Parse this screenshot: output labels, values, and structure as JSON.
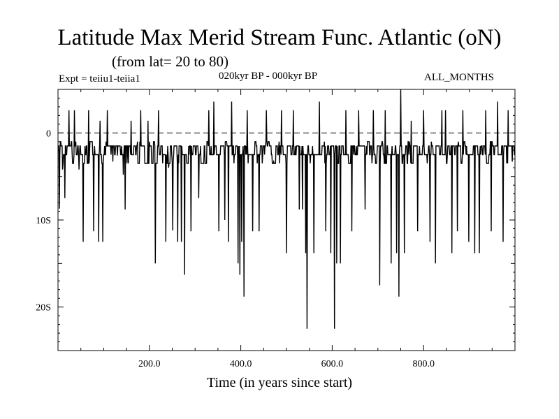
{
  "title": "Latitude Max Merid Stream Func. Atlantic (oN)",
  "subtitle": "(from lat= 20 to 80)",
  "expt_label": "Expt = teiiu1-teiia1",
  "period_label": "020kyr BP - 000kyr BP",
  "months_label": "ALL_MONTHS",
  "chart_data": {
    "type": "line",
    "title": "Latitude Max Merid Stream Func. Atlantic (oN)",
    "subtitle": "(from lat= 20 to 80)",
    "xlabel": "Time (in years since start)",
    "ylabel": "",
    "xlim": [
      0,
      1000
    ],
    "ylim": [
      -25,
      5
    ],
    "x_ticks": [
      {
        "value": 200,
        "label": "200.0"
      },
      {
        "value": 400,
        "label": "400.0"
      },
      {
        "value": 600,
        "label": "600.0"
      },
      {
        "value": 800,
        "label": "800.0"
      }
    ],
    "y_ticks": [
      {
        "value": 0,
        "label": "0"
      },
      {
        "value": -10,
        "label": "10S"
      },
      {
        "value": -20,
        "label": "20S"
      }
    ],
    "reference_line": {
      "y": 0,
      "style": "dashed"
    },
    "grid": false,
    "line_color": "#000000",
    "series": [
      {
        "baseline_values": [
          -1.5,
          -2.5
        ],
        "spikes": [
          {
            "x": 3,
            "y": -8.7
          },
          {
            "x": 10,
            "y": -4.2
          },
          {
            "x": 15,
            "y": -7.5
          },
          {
            "x": 24,
            "y": 2.6
          },
          {
            "x": 36,
            "y": 2.6
          },
          {
            "x": 46,
            "y": -4.2
          },
          {
            "x": 55,
            "y": -12.5
          },
          {
            "x": 67,
            "y": 2.6
          },
          {
            "x": 78,
            "y": -11.3
          },
          {
            "x": 89,
            "y": -12.5
          },
          {
            "x": 92,
            "y": 1.4
          },
          {
            "x": 98,
            "y": -12.5
          },
          {
            "x": 108,
            "y": 2.6
          },
          {
            "x": 120,
            "y": -3.3
          },
          {
            "x": 130,
            "y": -2.6
          },
          {
            "x": 143,
            "y": -4.8
          },
          {
            "x": 147,
            "y": -8.8
          },
          {
            "x": 160,
            "y": 1.4
          },
          {
            "x": 181,
            "y": 2.6
          },
          {
            "x": 197,
            "y": 1.4
          },
          {
            "x": 213,
            "y": -15.0
          },
          {
            "x": 220,
            "y": 2.6
          },
          {
            "x": 236,
            "y": -12.5
          },
          {
            "x": 242,
            "y": -4.0
          },
          {
            "x": 251,
            "y": -11.2
          },
          {
            "x": 262,
            "y": -12.5
          },
          {
            "x": 270,
            "y": -12.5
          },
          {
            "x": 277,
            "y": -16.3
          },
          {
            "x": 291,
            "y": -11.3
          },
          {
            "x": 308,
            "y": -7.5
          },
          {
            "x": 330,
            "y": 2.6
          },
          {
            "x": 341,
            "y": 3.6
          },
          {
            "x": 352,
            "y": -11.3
          },
          {
            "x": 365,
            "y": -10.0
          },
          {
            "x": 373,
            "y": -12.5
          },
          {
            "x": 380,
            "y": 3.6
          },
          {
            "x": 394,
            "y": -15.0
          },
          {
            "x": 398,
            "y": -16.3
          },
          {
            "x": 402,
            "y": -12.5
          },
          {
            "x": 407,
            "y": -18.8
          },
          {
            "x": 414,
            "y": 2.6
          },
          {
            "x": 426,
            "y": -11.3
          },
          {
            "x": 440,
            "y": -11.3
          },
          {
            "x": 456,
            "y": 2.6
          },
          {
            "x": 472,
            "y": -3.3
          },
          {
            "x": 489,
            "y": 2.6
          },
          {
            "x": 500,
            "y": -13.8
          },
          {
            "x": 515,
            "y": 2.6
          },
          {
            "x": 528,
            "y": -8.8
          },
          {
            "x": 535,
            "y": -8.8
          },
          {
            "x": 542,
            "y": -13.8
          },
          {
            "x": 545,
            "y": -22.5
          },
          {
            "x": 560,
            "y": -13.8
          },
          {
            "x": 572,
            "y": 3.6
          },
          {
            "x": 586,
            "y": -11.3
          },
          {
            "x": 597,
            "y": -13.8
          },
          {
            "x": 605,
            "y": -22.5
          },
          {
            "x": 610,
            "y": -15.0
          },
          {
            "x": 618,
            "y": -15.0
          },
          {
            "x": 630,
            "y": 2.6
          },
          {
            "x": 643,
            "y": -11.3
          },
          {
            "x": 658,
            "y": 2.6
          },
          {
            "x": 672,
            "y": -8.8
          },
          {
            "x": 690,
            "y": 2.6
          },
          {
            "x": 704,
            "y": -17.5
          },
          {
            "x": 716,
            "y": 2.6
          },
          {
            "x": 729,
            "y": -15.0
          },
          {
            "x": 741,
            "y": -13.8
          },
          {
            "x": 746,
            "y": -18.8
          },
          {
            "x": 750,
            "y": 5.0
          },
          {
            "x": 758,
            "y": -13.8
          },
          {
            "x": 773,
            "y": 1.4
          },
          {
            "x": 787,
            "y": -11.3
          },
          {
            "x": 800,
            "y": 2.6
          },
          {
            "x": 814,
            "y": -12.5
          },
          {
            "x": 826,
            "y": -15.0
          },
          {
            "x": 840,
            "y": 2.6
          },
          {
            "x": 848,
            "y": 2.6
          },
          {
            "x": 862,
            "y": -13.8
          },
          {
            "x": 874,
            "y": -11.3
          },
          {
            "x": 886,
            "y": 2.6
          },
          {
            "x": 899,
            "y": -12.5
          },
          {
            "x": 912,
            "y": -13.8
          },
          {
            "x": 922,
            "y": -13.8
          },
          {
            "x": 936,
            "y": 2.6
          },
          {
            "x": 948,
            "y": -11.3
          },
          {
            "x": 962,
            "y": 3.6
          },
          {
            "x": 974,
            "y": -12.5
          },
          {
            "x": 985,
            "y": 2.6
          },
          {
            "x": 994,
            "y": -3.3
          }
        ]
      }
    ]
  }
}
